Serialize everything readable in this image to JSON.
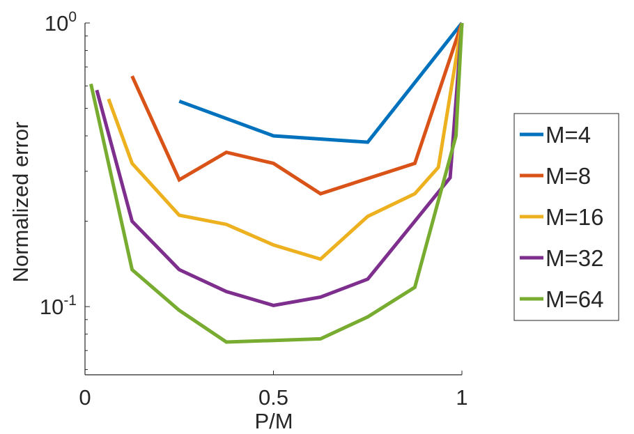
{
  "chart_data": {
    "type": "line",
    "title": "",
    "xlabel": "P/M",
    "ylabel": "Normalized error",
    "xlim": [
      0,
      1
    ],
    "ylim": [
      0.0575,
      1
    ],
    "yscale": "log",
    "xticks": [
      {
        "value": 0,
        "label": "0"
      },
      {
        "value": 0.5,
        "label": "0.5"
      },
      {
        "value": 1,
        "label": "1"
      }
    ],
    "yticks": [
      {
        "value": 0.1,
        "base": "10",
        "exp": "-1"
      },
      {
        "value": 1,
        "base": "10",
        "exp": "0"
      }
    ],
    "grid": false,
    "legend_position": "right",
    "series": [
      {
        "name": "M=4",
        "color": "#0072BD",
        "x": [
          0.25,
          0.5,
          0.75,
          1.0
        ],
        "y": [
          0.53,
          0.4,
          0.38,
          1.0
        ]
      },
      {
        "name": "M=8",
        "color": "#D95319",
        "x": [
          0.125,
          0.25,
          0.375,
          0.5,
          0.625,
          0.875,
          1.0
        ],
        "y": [
          0.65,
          0.28,
          0.35,
          0.32,
          0.25,
          0.32,
          1.0
        ]
      },
      {
        "name": "M=16",
        "color": "#EDB120",
        "x": [
          0.0625,
          0.125,
          0.25,
          0.375,
          0.5,
          0.625,
          0.75,
          0.875,
          0.9375,
          1.0
        ],
        "y": [
          0.54,
          0.32,
          0.21,
          0.195,
          0.165,
          0.147,
          0.208,
          0.25,
          0.31,
          1.0
        ]
      },
      {
        "name": "M=32",
        "color": "#7E2F8E",
        "x": [
          0.03125,
          0.125,
          0.25,
          0.375,
          0.5,
          0.625,
          0.75,
          0.875,
          0.96875,
          1.0
        ],
        "y": [
          0.58,
          0.2,
          0.135,
          0.113,
          0.101,
          0.108,
          0.125,
          0.2,
          0.285,
          1.0
        ]
      },
      {
        "name": "M=64",
        "color": "#77AC30",
        "x": [
          0.015625,
          0.125,
          0.25,
          0.375,
          0.5,
          0.625,
          0.75,
          0.875,
          0.984375,
          1.0
        ],
        "y": [
          0.61,
          0.135,
          0.097,
          0.075,
          0.076,
          0.077,
          0.092,
          0.117,
          0.4,
          1.0
        ]
      }
    ]
  }
}
